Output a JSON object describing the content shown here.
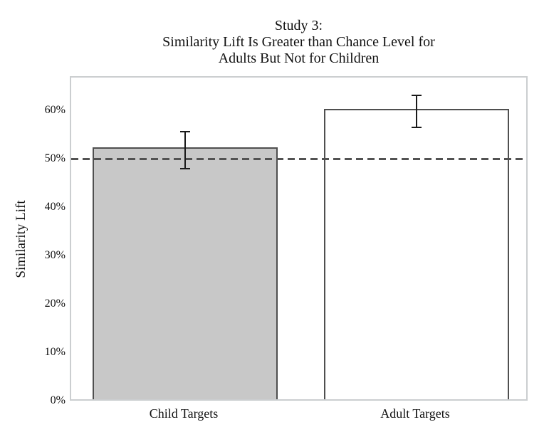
{
  "chart_data": {
    "type": "bar",
    "title_lines": [
      "Study 3:",
      "Similarity Lift Is Greater than Chance Level for",
      "Adults But Not for Children"
    ],
    "ylabel": "Similarity Lift",
    "xlabel": "",
    "categories": [
      "Child Targets",
      "Adult Targets"
    ],
    "values": [
      52,
      60
    ],
    "errors_low": [
      48,
      56.5
    ],
    "errors_high": [
      56,
      63.5
    ],
    "yticks": [
      {
        "value": 0,
        "label": "0%"
      },
      {
        "value": 10,
        "label": "10%"
      },
      {
        "value": 20,
        "label": "20%"
      },
      {
        "value": 30,
        "label": "30%"
      },
      {
        "value": 40,
        "label": "40%"
      },
      {
        "value": 50,
        "label": "50%"
      },
      {
        "value": 60,
        "label": "60%"
      }
    ],
    "ylim": [
      0,
      67
    ],
    "reference_line": {
      "value": 50,
      "style": "dashed"
    },
    "grid": "off",
    "legend": "none",
    "colors": {
      "bar_fills": [
        "#c8c8c8",
        "#ffffff"
      ],
      "bar_border": "#4f4f4f",
      "error_bar": "#1a1a1a",
      "reference_line": "#525252",
      "plot_border": "#cbced0",
      "text": "#111111",
      "background": "#ffffff"
    }
  }
}
